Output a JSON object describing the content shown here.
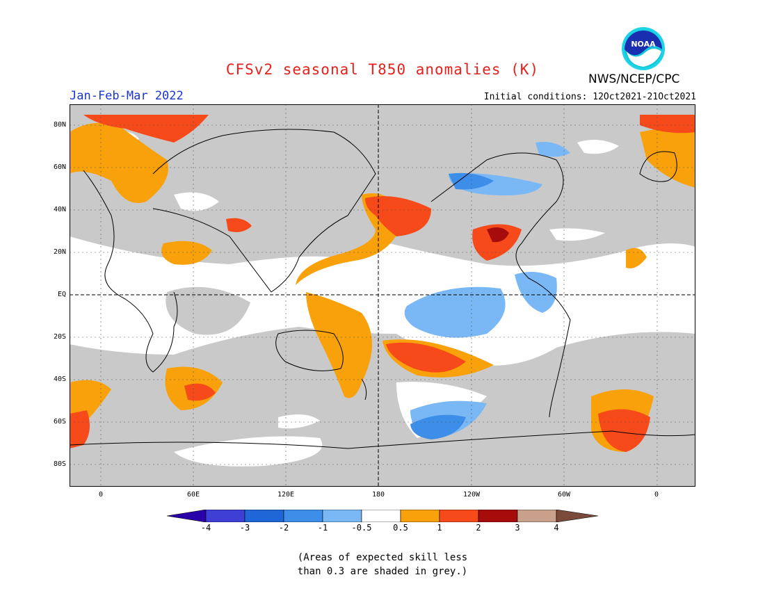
{
  "title": "CFSv2 seasonal T850 anomalies (K)",
  "period": "Jan-Feb-Mar 2022",
  "agency": "NWS/NCEP/CPC",
  "logo_text": "NOAA",
  "initial_conditions": "Initial conditions: 12Oct2021-21Oct2021",
  "lat_labels": [
    "80N",
    "60N",
    "40N",
    "20N",
    "EQ",
    "20S",
    "40S",
    "60S",
    "80S"
  ],
  "lon_labels": [
    "0",
    "60E",
    "120E",
    "180",
    "120W",
    "60W",
    "0"
  ],
  "colorbar": {
    "ticks": [
      "-4",
      "-3",
      "-2",
      "-1",
      "-0.5",
      "0.5",
      "1",
      "2",
      "3",
      "4"
    ],
    "colors": [
      "#2a00a8",
      "#3f3fd6",
      "#1f66d6",
      "#3d8ee8",
      "#7ab8f5",
      "#ffffff",
      "#f9a10a",
      "#f64a1b",
      "#a60c0c",
      "#c9a08c",
      "#7a4a3a"
    ]
  },
  "grey_color": "#c9c9c9",
  "note_line1": "(Areas of expected skill less",
  "note_line2": "than 0.3 are shaded in grey.)"
}
